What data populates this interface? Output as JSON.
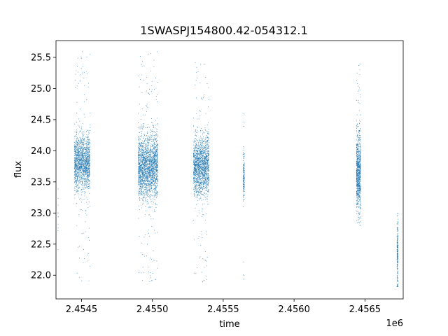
{
  "chart_data": {
    "type": "scatter",
    "title": "1SWASPJ154800.42-054312.1",
    "xlabel": "time",
    "ylabel": "flux",
    "x_offset_label": "1e6",
    "x_ticks": [
      2454500,
      2455000,
      2455500,
      2456000,
      2456500
    ],
    "x_tick_labels": [
      "2.4545",
      "2.4550",
      "2.4555",
      "2.4560",
      "2.4565"
    ],
    "y_ticks": [
      22.0,
      22.5,
      23.0,
      23.5,
      24.0,
      24.5,
      25.0,
      25.5
    ],
    "y_tick_labels": [
      "22.0",
      "22.5",
      "23.0",
      "23.5",
      "24.0",
      "24.5",
      "25.0",
      "25.5"
    ],
    "xlim": [
      2454320,
      2456770
    ],
    "ylim": [
      21.62,
      25.77
    ],
    "grid": false,
    "marker_color": "#1f77b4",
    "clusters": [
      {
        "x_range": [
          2454334,
          2454336
        ],
        "y_center": 22.9,
        "y_spread": 0.35,
        "y_range": [
          22.1,
          23.4
        ],
        "count": 12
      },
      {
        "x_range": [
          2454450,
          2454560
        ],
        "y_center": 23.8,
        "y_spread": 0.22,
        "y_range": [
          21.9,
          25.6
        ],
        "count": 1600
      },
      {
        "x_range": [
          2454900,
          2455040
        ],
        "y_center": 23.75,
        "y_spread": 0.25,
        "y_range": [
          21.85,
          25.6
        ],
        "count": 2200
      },
      {
        "x_range": [
          2455290,
          2455400
        ],
        "y_center": 23.75,
        "y_spread": 0.23,
        "y_range": [
          21.85,
          25.5
        ],
        "count": 1700
      },
      {
        "x_range": [
          2455640,
          2455650
        ],
        "y_center": 23.6,
        "y_spread": 0.18,
        "y_range": [
          21.85,
          24.85
        ],
        "count": 160
      },
      {
        "x_range": [
          2456440,
          2456470
        ],
        "y_center": 23.65,
        "y_spread": 0.3,
        "y_range": [
          22.8,
          25.4
        ],
        "count": 900
      },
      {
        "x_range": [
          2456726,
          2456734
        ],
        "y_center": 22.3,
        "y_spread": 0.3,
        "y_range": [
          21.82,
          23.0
        ],
        "count": 220
      }
    ]
  }
}
